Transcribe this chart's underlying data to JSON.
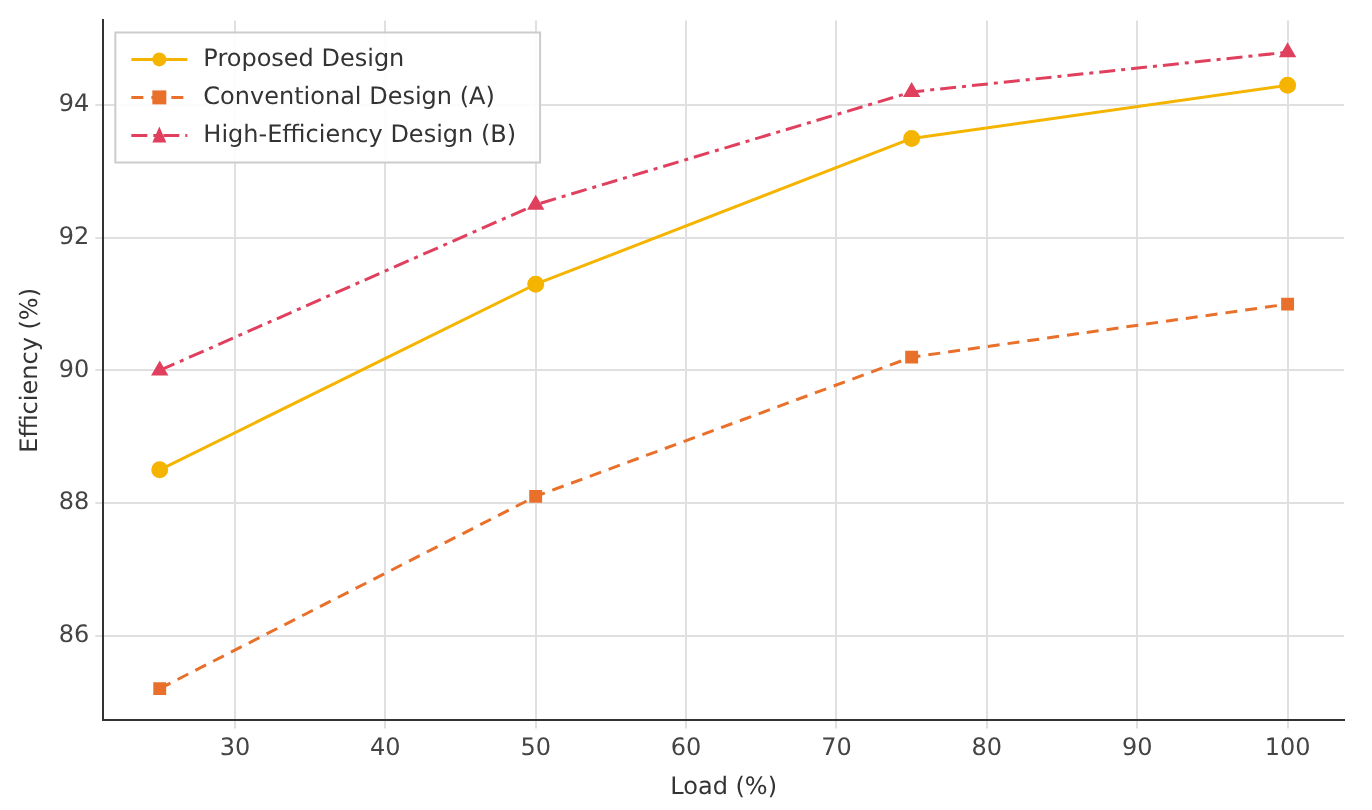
{
  "chart_data": {
    "type": "line",
    "xlabel": "Load (%)",
    "ylabel": "Efficiency (%)",
    "x": [
      25,
      50,
      75,
      100
    ],
    "series": [
      {
        "name": "Proposed Design",
        "color": "#f4b400",
        "values": [
          88.5,
          91.3,
          93.5,
          94.3
        ],
        "marker": "circle",
        "line_style": "solid"
      },
      {
        "name": "Conventional Design (A)",
        "color": "#e8702a",
        "values": [
          85.2,
          88.1,
          90.2,
          91.0
        ],
        "marker": "square",
        "line_style": "dashed"
      },
      {
        "name": "High-Efficiency Design (B)",
        "color": "#e0405e",
        "values": [
          90.0,
          92.5,
          94.2,
          94.8
        ],
        "marker": "triangle",
        "line_style": "dashdot"
      }
    ],
    "xlim": [
      21.25,
      103.75
    ],
    "xticks": [
      30,
      40,
      50,
      60,
      70,
      80,
      90,
      100
    ],
    "ylim": [
      84.72,
      95.28
    ],
    "yticks": [
      86,
      88,
      90,
      92,
      94
    ],
    "grid": true,
    "legend": "top left"
  }
}
